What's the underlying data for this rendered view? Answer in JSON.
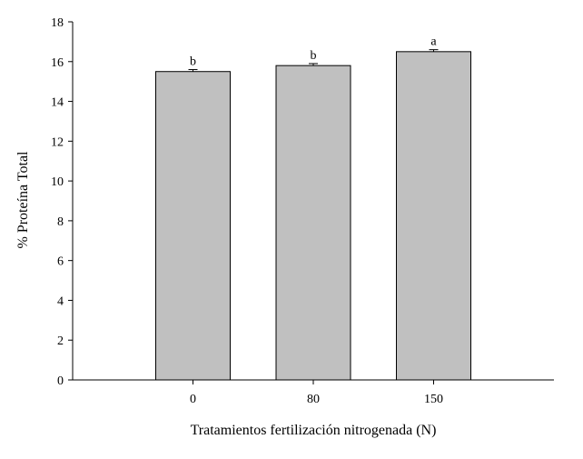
{
  "chart_data": {
    "type": "bar",
    "categories": [
      "0",
      "80",
      "150"
    ],
    "values": [
      15.5,
      15.8,
      16.5
    ],
    "error": [
      0.1,
      0.1,
      0.1
    ],
    "significance_labels": [
      "b",
      "b",
      "a"
    ],
    "title": "",
    "xlabel": "Tratamientos fertilización nitrogenada (N)",
    "ylabel": "% Proteína Total",
    "ylim": [
      0,
      18
    ],
    "yticks": [
      0,
      2,
      4,
      6,
      8,
      10,
      12,
      14,
      16,
      18
    ],
    "grid": false,
    "bar_color": "#c0c0c0",
    "edge_color": "#000000"
  }
}
